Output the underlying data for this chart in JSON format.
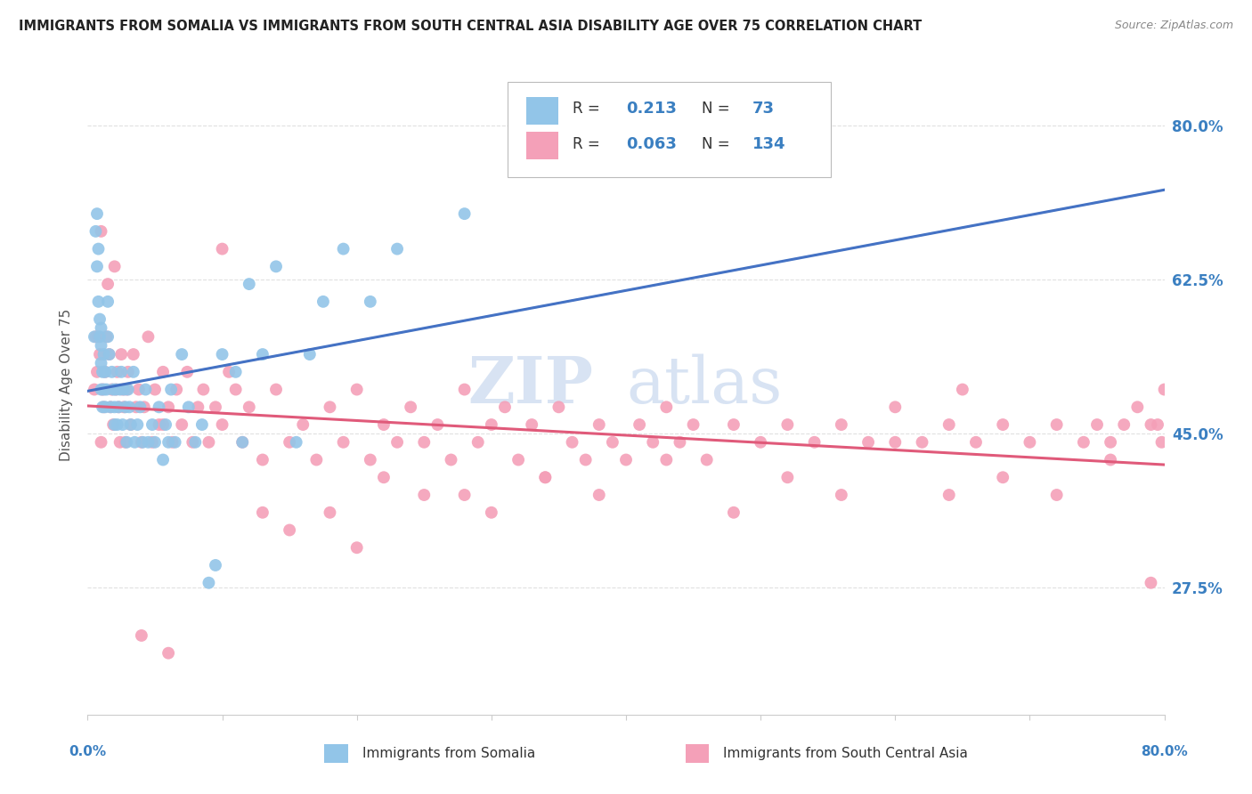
{
  "title": "IMMIGRANTS FROM SOMALIA VS IMMIGRANTS FROM SOUTH CENTRAL ASIA DISABILITY AGE OVER 75 CORRELATION CHART",
  "source": "Source: ZipAtlas.com",
  "ylabel": "Disability Age Over 75",
  "ytick_labels": [
    "80.0%",
    "62.5%",
    "45.0%",
    "27.5%"
  ],
  "ytick_values": [
    0.8,
    0.625,
    0.45,
    0.275
  ],
  "xmin": 0.0,
  "xmax": 0.8,
  "ymin": 0.13,
  "ymax": 0.88,
  "legend_R1": "0.213",
  "legend_N1": "73",
  "legend_R2": "0.063",
  "legend_N2": "134",
  "series1_color": "#92C5E8",
  "series2_color": "#F4A0B8",
  "trendline1_color": "#4472C4",
  "trendline2_color": "#E05A7A",
  "trendline_dashed_color": "#A8CCE8",
  "watermark_color": "#C8D8EE",
  "background_color": "#ffffff",
  "grid_color": "#E0E0E0",
  "somalia_x": [
    0.005,
    0.006,
    0.007,
    0.007,
    0.008,
    0.008,
    0.009,
    0.009,
    0.01,
    0.01,
    0.01,
    0.01,
    0.011,
    0.011,
    0.012,
    0.012,
    0.013,
    0.013,
    0.014,
    0.015,
    0.015,
    0.016,
    0.017,
    0.018,
    0.019,
    0.02,
    0.02,
    0.021,
    0.022,
    0.023,
    0.024,
    0.025,
    0.026,
    0.027,
    0.028,
    0.029,
    0.03,
    0.031,
    0.032,
    0.034,
    0.035,
    0.037,
    0.039,
    0.041,
    0.043,
    0.045,
    0.048,
    0.05,
    0.053,
    0.056,
    0.058,
    0.06,
    0.062,
    0.065,
    0.07,
    0.075,
    0.08,
    0.085,
    0.09,
    0.095,
    0.1,
    0.11,
    0.115,
    0.12,
    0.13,
    0.14,
    0.155,
    0.165,
    0.175,
    0.19,
    0.21,
    0.23,
    0.28
  ],
  "somalia_y": [
    0.56,
    0.68,
    0.64,
    0.7,
    0.6,
    0.66,
    0.56,
    0.58,
    0.5,
    0.53,
    0.55,
    0.57,
    0.48,
    0.52,
    0.5,
    0.54,
    0.48,
    0.52,
    0.5,
    0.56,
    0.6,
    0.54,
    0.48,
    0.52,
    0.5,
    0.46,
    0.48,
    0.5,
    0.46,
    0.48,
    0.5,
    0.52,
    0.46,
    0.5,
    0.48,
    0.44,
    0.5,
    0.48,
    0.46,
    0.52,
    0.44,
    0.46,
    0.48,
    0.44,
    0.5,
    0.44,
    0.46,
    0.44,
    0.48,
    0.42,
    0.46,
    0.44,
    0.5,
    0.44,
    0.54,
    0.48,
    0.44,
    0.46,
    0.28,
    0.3,
    0.54,
    0.52,
    0.44,
    0.62,
    0.54,
    0.64,
    0.44,
    0.54,
    0.6,
    0.66,
    0.6,
    0.66,
    0.7
  ],
  "sca_x": [
    0.005,
    0.006,
    0.007,
    0.008,
    0.009,
    0.01,
    0.01,
    0.011,
    0.012,
    0.013,
    0.014,
    0.015,
    0.016,
    0.017,
    0.018,
    0.019,
    0.02,
    0.021,
    0.022,
    0.023,
    0.024,
    0.025,
    0.026,
    0.027,
    0.028,
    0.029,
    0.03,
    0.032,
    0.034,
    0.036,
    0.038,
    0.04,
    0.042,
    0.045,
    0.048,
    0.05,
    0.053,
    0.056,
    0.06,
    0.063,
    0.066,
    0.07,
    0.074,
    0.078,
    0.082,
    0.086,
    0.09,
    0.095,
    0.1,
    0.105,
    0.11,
    0.115,
    0.12,
    0.13,
    0.14,
    0.15,
    0.16,
    0.17,
    0.18,
    0.19,
    0.2,
    0.21,
    0.22,
    0.23,
    0.24,
    0.25,
    0.26,
    0.27,
    0.28,
    0.29,
    0.3,
    0.31,
    0.32,
    0.33,
    0.34,
    0.35,
    0.36,
    0.37,
    0.38,
    0.39,
    0.4,
    0.41,
    0.42,
    0.43,
    0.44,
    0.45,
    0.46,
    0.48,
    0.5,
    0.52,
    0.54,
    0.56,
    0.58,
    0.6,
    0.62,
    0.64,
    0.65,
    0.66,
    0.68,
    0.7,
    0.72,
    0.74,
    0.75,
    0.76,
    0.77,
    0.78,
    0.79,
    0.795,
    0.798,
    0.8,
    0.056,
    0.1,
    0.13,
    0.15,
    0.18,
    0.2,
    0.22,
    0.25,
    0.28,
    0.3,
    0.34,
    0.38,
    0.43,
    0.48,
    0.52,
    0.56,
    0.6,
    0.64,
    0.68,
    0.72,
    0.76,
    0.79,
    0.04,
    0.06
  ],
  "sca_y": [
    0.5,
    0.56,
    0.52,
    0.56,
    0.54,
    0.68,
    0.44,
    0.5,
    0.48,
    0.52,
    0.56,
    0.62,
    0.54,
    0.48,
    0.5,
    0.46,
    0.64,
    0.5,
    0.52,
    0.48,
    0.44,
    0.54,
    0.5,
    0.48,
    0.44,
    0.5,
    0.52,
    0.46,
    0.54,
    0.48,
    0.5,
    0.44,
    0.48,
    0.56,
    0.44,
    0.5,
    0.46,
    0.52,
    0.48,
    0.44,
    0.5,
    0.46,
    0.52,
    0.44,
    0.48,
    0.5,
    0.44,
    0.48,
    0.46,
    0.52,
    0.5,
    0.44,
    0.48,
    0.42,
    0.5,
    0.44,
    0.46,
    0.42,
    0.48,
    0.44,
    0.5,
    0.42,
    0.46,
    0.44,
    0.48,
    0.44,
    0.46,
    0.42,
    0.5,
    0.44,
    0.46,
    0.48,
    0.42,
    0.46,
    0.4,
    0.48,
    0.44,
    0.42,
    0.46,
    0.44,
    0.42,
    0.46,
    0.44,
    0.48,
    0.44,
    0.46,
    0.42,
    0.46,
    0.44,
    0.46,
    0.44,
    0.46,
    0.44,
    0.48,
    0.44,
    0.46,
    0.5,
    0.44,
    0.46,
    0.44,
    0.46,
    0.44,
    0.46,
    0.44,
    0.46,
    0.48,
    0.46,
    0.46,
    0.44,
    0.5,
    0.46,
    0.66,
    0.36,
    0.34,
    0.36,
    0.32,
    0.4,
    0.38,
    0.38,
    0.36,
    0.4,
    0.38,
    0.42,
    0.36,
    0.4,
    0.38,
    0.44,
    0.38,
    0.4,
    0.38,
    0.42,
    0.28,
    0.22,
    0.2
  ]
}
